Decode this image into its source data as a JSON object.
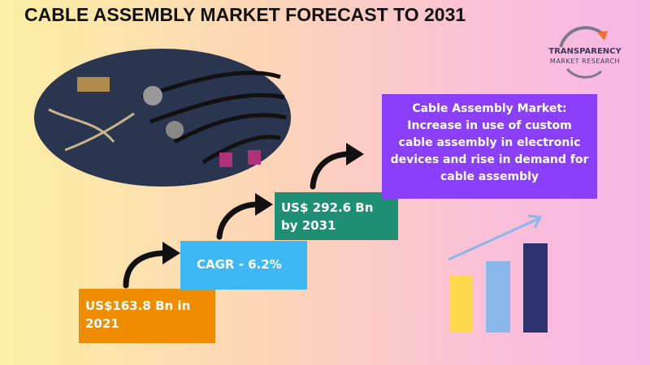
{
  "header": {
    "title": "CABLE ASSEMBLY MARKET FORECAST TO 2031"
  },
  "logo": {
    "name": "TRANSPARENCY",
    "subtitle": "MARKET RESEARCH"
  },
  "steps": [
    {
      "text": "US$163.8 Bn in 2021"
    },
    {
      "text": "CAGR - 6.2%"
    },
    {
      "text": "US$ 292.6 Bn by 2031"
    }
  ],
  "summary": {
    "text": "Cable Assembly Market: Increase in use of custom cable assembly in electronic devices and rise in demand for cable assembly"
  }
}
